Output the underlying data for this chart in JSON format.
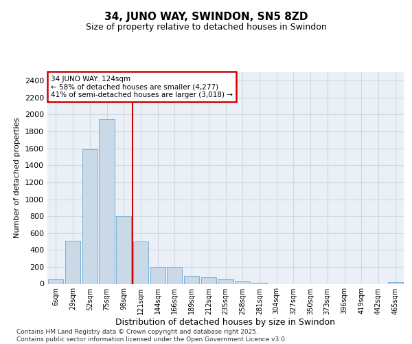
{
  "title": "34, JUNO WAY, SWINDON, SN5 8ZD",
  "subtitle": "Size of property relative to detached houses in Swindon",
  "xlabel": "Distribution of detached houses by size in Swindon",
  "ylabel": "Number of detached properties",
  "footer": "Contains HM Land Registry data © Crown copyright and database right 2025.\nContains public sector information licensed under the Open Government Licence v3.0.",
  "property_label": "34 JUNO WAY: 124sqm",
  "annotation_line1": "← 58% of detached houses are smaller (4,277)",
  "annotation_line2": "41% of semi-detached houses are larger (3,018) →",
  "bar_color": "#c9d9e8",
  "bar_edge_color": "#7bafd4",
  "vline_color": "#cc0000",
  "annotation_box_color": "#cc0000",
  "grid_color": "#d0d8e4",
  "bg_color": "#eaf0f6",
  "categories": [
    "6sqm",
    "29sqm",
    "52sqm",
    "75sqm",
    "98sqm",
    "121sqm",
    "144sqm",
    "166sqm",
    "189sqm",
    "212sqm",
    "235sqm",
    "258sqm",
    "281sqm",
    "304sqm",
    "327sqm",
    "350sqm",
    "373sqm",
    "396sqm",
    "419sqm",
    "442sqm",
    "465sqm"
  ],
  "values": [
    55,
    510,
    1590,
    1950,
    800,
    500,
    200,
    200,
    90,
    75,
    50,
    30,
    15,
    0,
    0,
    0,
    0,
    0,
    0,
    0,
    20
  ],
  "ylim": [
    0,
    2500
  ],
  "yticks": [
    0,
    200,
    400,
    600,
    800,
    1000,
    1200,
    1400,
    1600,
    1800,
    2000,
    2200,
    2400
  ],
  "vline_x_index": 4.5
}
